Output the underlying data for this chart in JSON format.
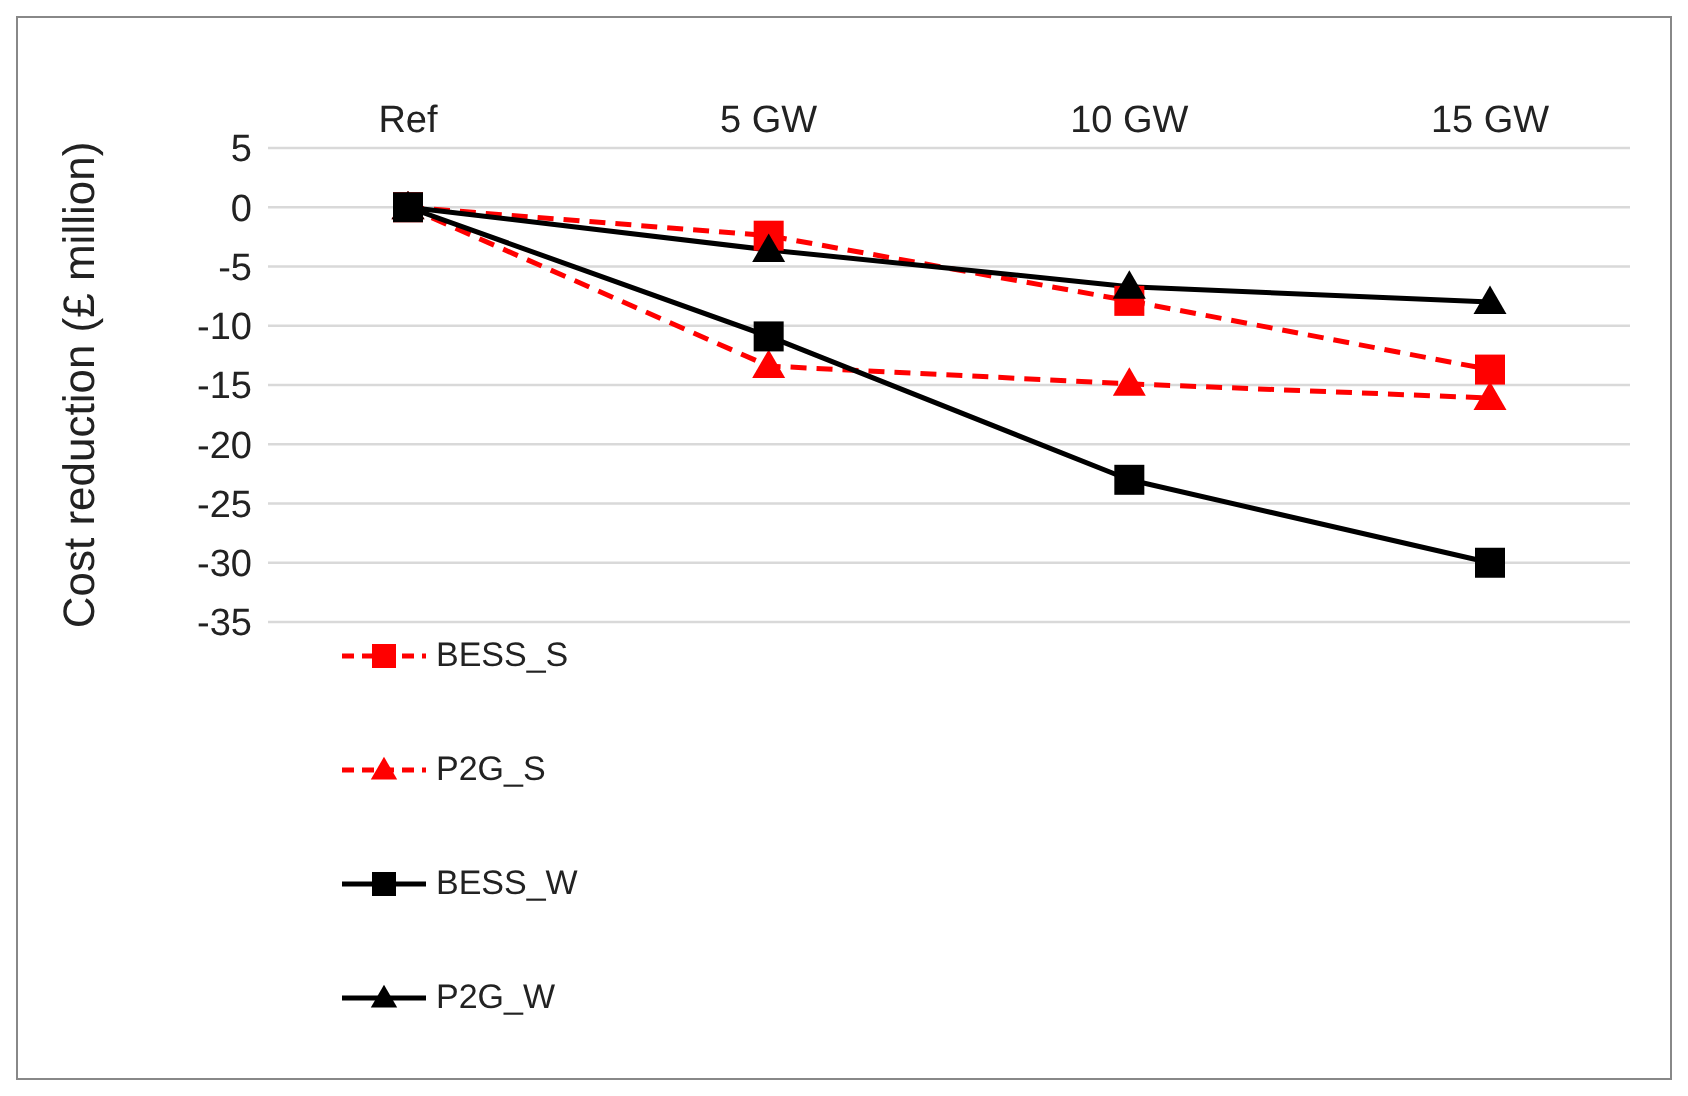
{
  "chart_data": {
    "type": "line",
    "ylabel": "Cost reduction (£ million)",
    "categories": [
      "Ref",
      "5 GW",
      "10 GW",
      "15 GW"
    ],
    "series": [
      {
        "name": "BESS_S",
        "color": "#ff0000",
        "marker": "square",
        "line_style": "dashed",
        "values": [
          0,
          -2.4,
          -7.9,
          -13.7
        ]
      },
      {
        "name": "P2G_S",
        "color": "#ff0000",
        "marker": "triangle",
        "line_style": "dashed",
        "values": [
          0,
          -13.4,
          -14.9,
          -16.1
        ]
      },
      {
        "name": "BESS_W",
        "color": "#000000",
        "marker": "square",
        "line_style": "solid",
        "values": [
          0,
          -10.9,
          -23.0,
          -30.0
        ]
      },
      {
        "name": "P2G_W",
        "color": "#000000",
        "marker": "triangle",
        "line_style": "solid",
        "values": [
          0,
          -3.6,
          -6.7,
          -8.0
        ]
      }
    ],
    "ylim": [
      -35,
      5
    ],
    "yticks": [
      -35,
      -30,
      -25,
      -20,
      -15,
      -10,
      -5,
      0,
      5
    ],
    "grid": "y",
    "legend": "left"
  }
}
